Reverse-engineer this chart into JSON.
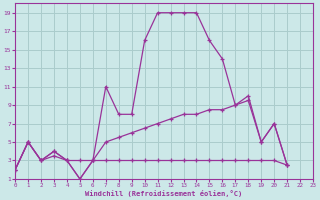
{
  "xlabel": "Windchill (Refroidissement éolien,°C)",
  "xlim": [
    0,
    23
  ],
  "ylim": [
    1,
    20
  ],
  "xticks": [
    0,
    1,
    2,
    3,
    4,
    5,
    6,
    7,
    8,
    9,
    10,
    11,
    12,
    13,
    14,
    15,
    16,
    17,
    18,
    19,
    20,
    21,
    22,
    23
  ],
  "yticks": [
    1,
    3,
    5,
    7,
    9,
    11,
    13,
    15,
    17,
    19
  ],
  "bg_color": "#cce8e8",
  "grid_color": "#aacccc",
  "line_color": "#993399",
  "line1_x": [
    0,
    1,
    2,
    3,
    4,
    5,
    6,
    7,
    8,
    9,
    10,
    11,
    12,
    13,
    14,
    15,
    16,
    17,
    18,
    19,
    20,
    21
  ],
  "line1_y": [
    2,
    5,
    3,
    4,
    3,
    1,
    3,
    11,
    8,
    8,
    16,
    19,
    19,
    19,
    19,
    16,
    14,
    9,
    10,
    5,
    7,
    2.5
  ],
  "line2_x": [
    0,
    1,
    2,
    3,
    4,
    5,
    6,
    7,
    8,
    9,
    10,
    11,
    12,
    13,
    14,
    15,
    16,
    17,
    18,
    19,
    20,
    21
  ],
  "line2_y": [
    2,
    5,
    3,
    4,
    3,
    1,
    3,
    5,
    5.5,
    6,
    6.5,
    7,
    7.5,
    8,
    8,
    8.5,
    8.5,
    9,
    9.5,
    5,
    7,
    2.5
  ],
  "line3_x": [
    0,
    1,
    2,
    3,
    4,
    5,
    6,
    7,
    8,
    9,
    10,
    11,
    12,
    13,
    14,
    15,
    16,
    17,
    18,
    19,
    20,
    21
  ],
  "line3_y": [
    2,
    5,
    3,
    3.5,
    3,
    3,
    3,
    3,
    3,
    3,
    3,
    3,
    3,
    3,
    3,
    3,
    3,
    3,
    3,
    3,
    3,
    2.5
  ]
}
